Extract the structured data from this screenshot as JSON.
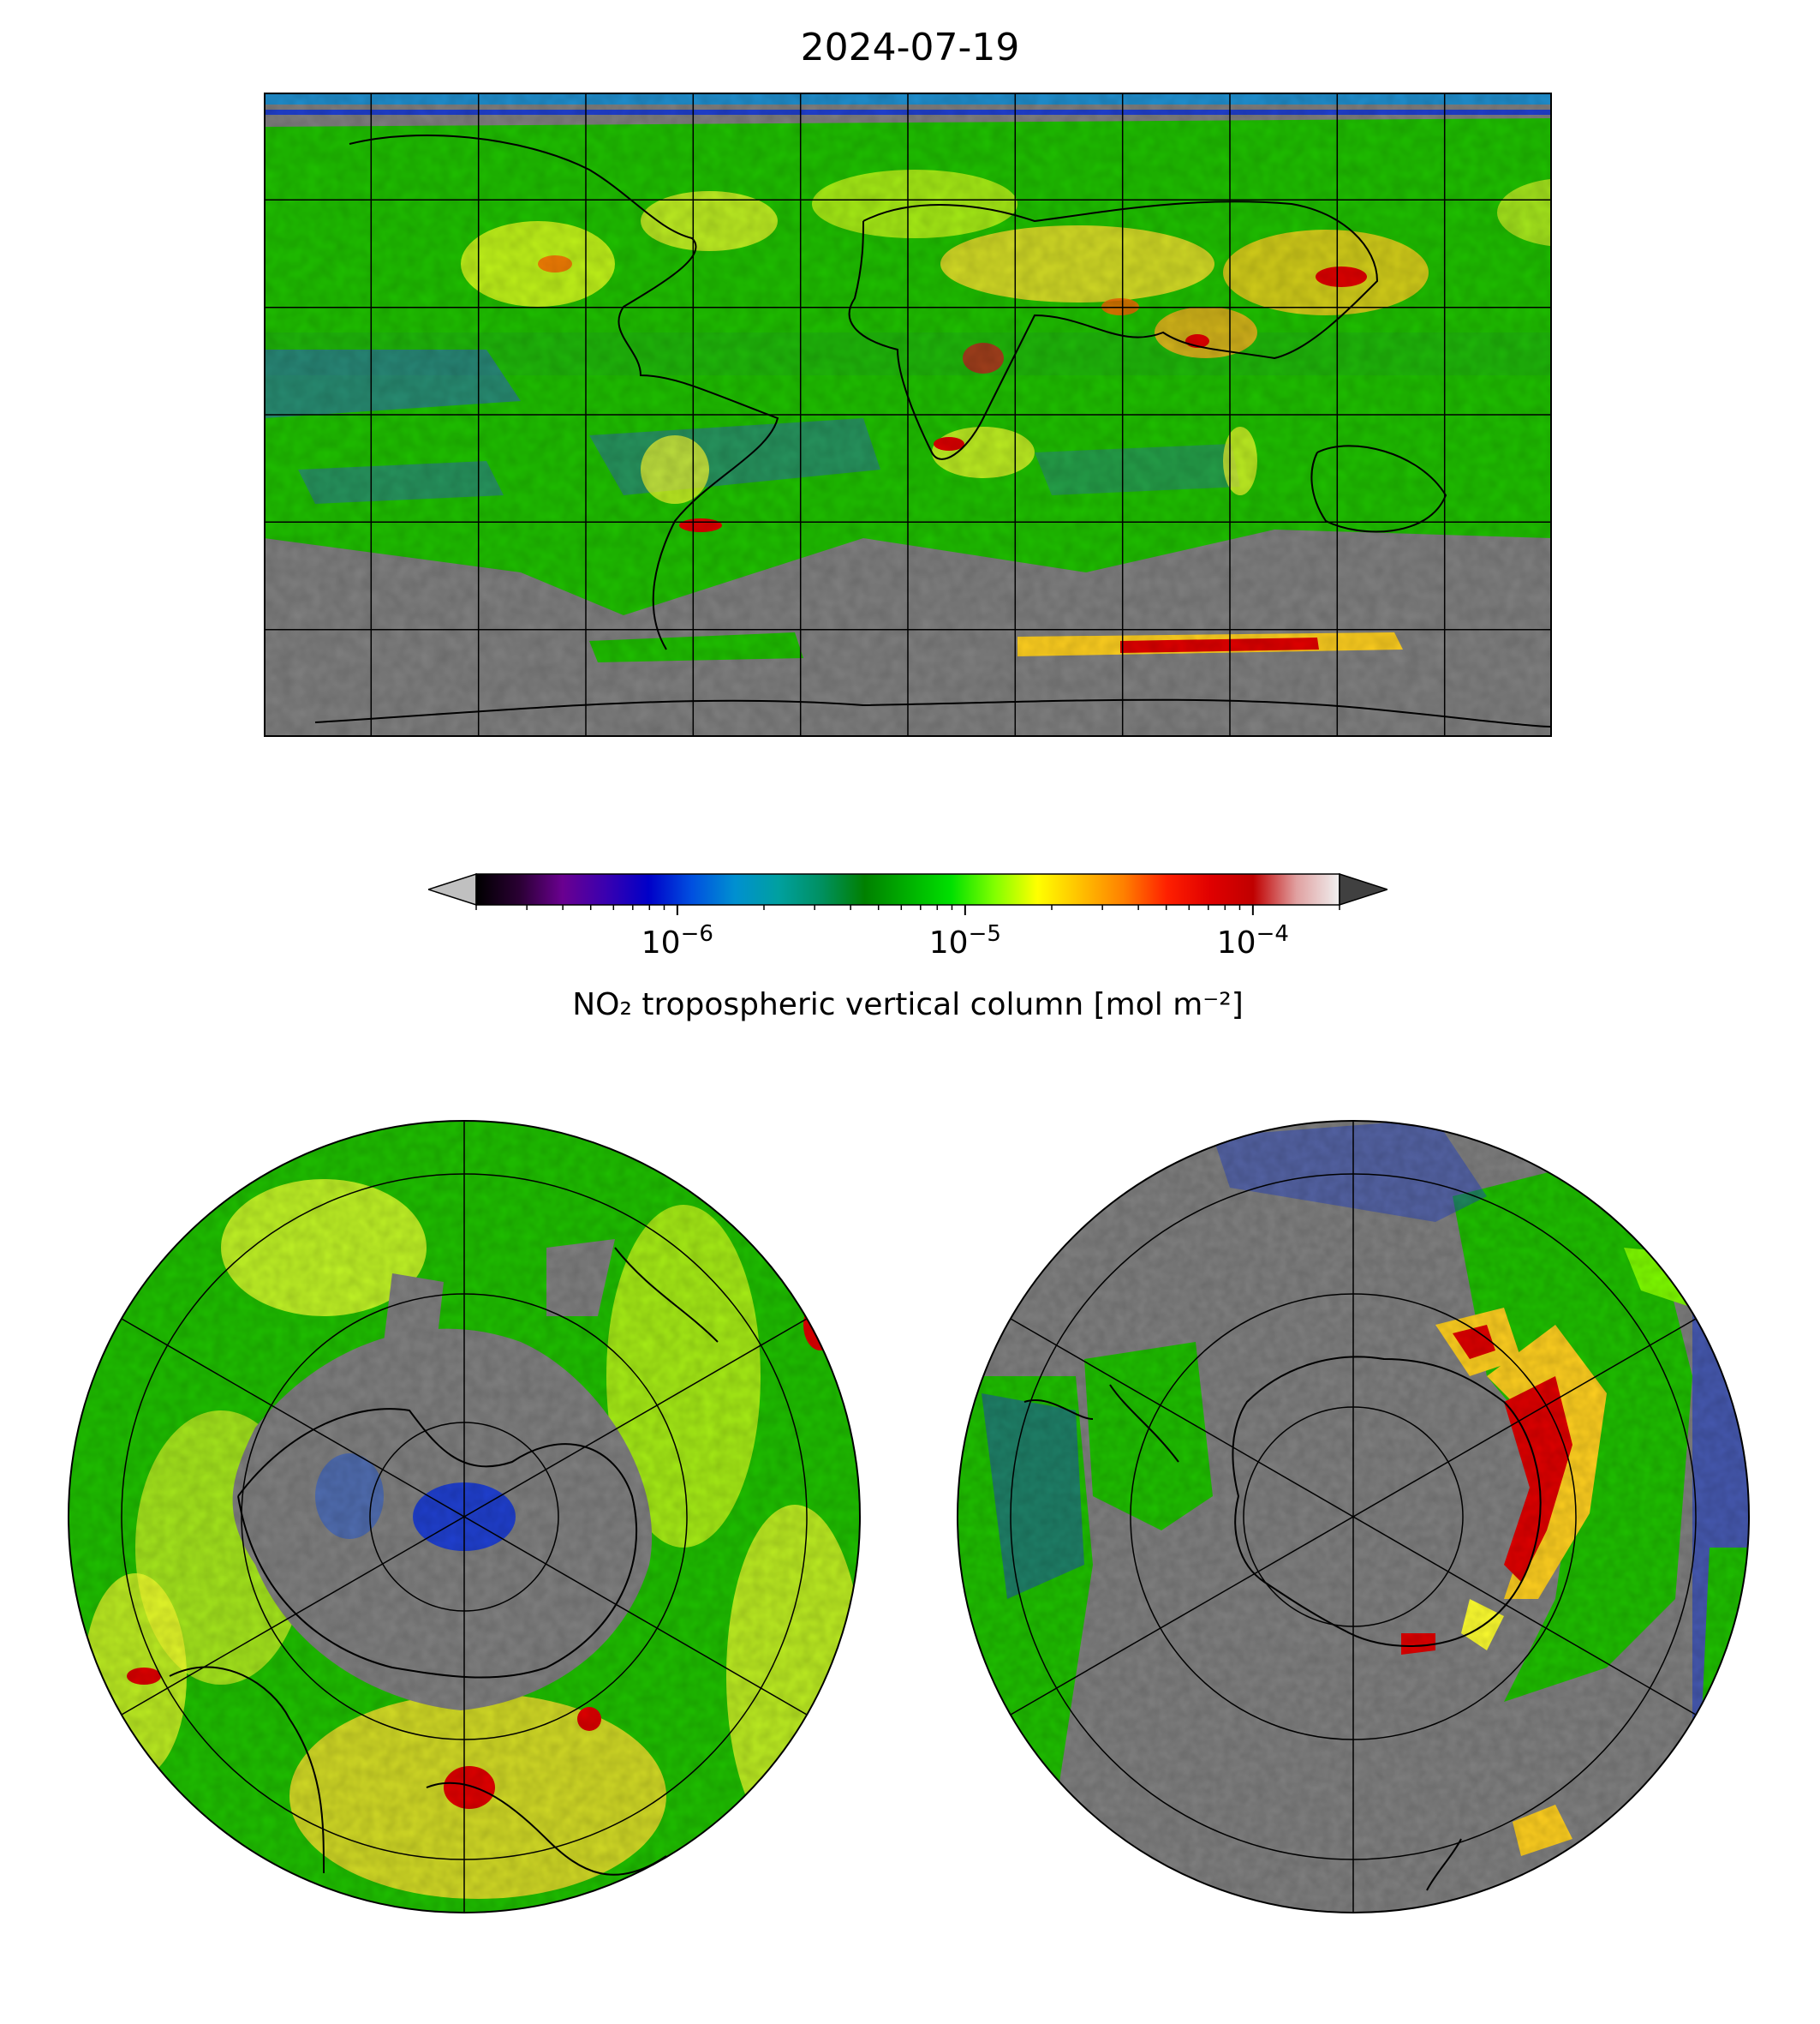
{
  "figure": {
    "title": "2024-07-19"
  },
  "colorbar": {
    "label": "NO₂ tropospheric vertical column [mol m⁻²]",
    "scale": "log",
    "range": [
      2e-07,
      0.0002
    ],
    "extend": "both",
    "ticks": [
      {
        "value": 1e-06,
        "base": "10",
        "exp": "−6"
      },
      {
        "value": 1e-05,
        "base": "10",
        "exp": "−5"
      },
      {
        "value": 0.0001,
        "base": "10",
        "exp": "−4"
      }
    ],
    "colors": [
      "#000000",
      "#2a0033",
      "#6a0090",
      "#3a00b0",
      "#0000c8",
      "#0050e0",
      "#0090d0",
      "#00a0a0",
      "#009060",
      "#008000",
      "#00b000",
      "#00e000",
      "#80ff00",
      "#ffff00",
      "#ffc000",
      "#ff8000",
      "#ff2000",
      "#e00000",
      "#c00000",
      "#e0a0a0",
      "#f0f0f0"
    ],
    "under_color": "#c0c0c0",
    "over_color": "#404040"
  },
  "maps": {
    "no_data_color": "#808080",
    "coastline_color": "#000000",
    "gridline_color": "#000000",
    "world": {
      "projection": "PlateCarree",
      "lon_range": [
        -180,
        180
      ],
      "lat_range": [
        -90,
        90
      ],
      "grid_lon_step": 30,
      "grid_lat_step": 30
    },
    "north": {
      "projection": "NorthPolarStereo",
      "boundary_lat": 0,
      "circles_lat": [
        30,
        60,
        80
      ]
    },
    "south": {
      "projection": "SouthPolarStereo",
      "boundary_lat": 0,
      "circles_lat": [
        -30,
        -60,
        -80
      ]
    }
  }
}
